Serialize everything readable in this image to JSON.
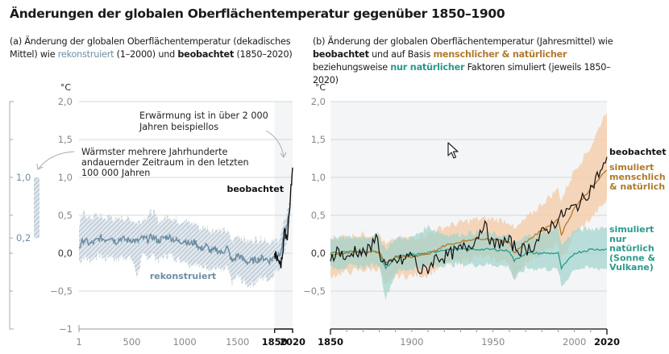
{
  "title": "Änderungen der globalen Oberflächentemperatur gegenüber 1850–1900",
  "panel_a": {
    "subtitle_parts": [
      "(a) Änderung der globalen Oberflächentemperatur (dekadisches Mittel) wie ",
      "rekonstruiert",
      " (1–2000) und ",
      "beobachtet",
      " (1850–2020)"
    ],
    "unit": "°C",
    "annotation_warming": [
      "Erwärmung ist in über 2 000",
      "Jahren beispiellos"
    ],
    "annotation_warmest": [
      "Wärmster mehrere Jahrhunderte",
      "andauernder Zeitraum in den letzten",
      "100 000 Jahren"
    ],
    "label_observed": "beobachtet",
    "label_reconstructed": "rekonstruiert",
    "range_bar": {
      "low": 0.2,
      "high": 1.0,
      "low_label": "0,2",
      "high_label": "1,0"
    }
  },
  "panel_b": {
    "subtitle_parts": [
      "(b) Änderung der globalen Oberflächentemperatur (Jahresmittel) wie ",
      "beobachtet",
      " und auf Basis ",
      "menschlicher & natürlicher",
      " beziehungsweise ",
      "nur natürlicher",
      " Faktoren simuliert (jeweils 1850–2020)"
    ],
    "unit": "°C",
    "label_observed": "beobachtet",
    "label_anthro": [
      "simuliert",
      "menschlich",
      "& natürlich"
    ],
    "label_natural": [
      "simuliert",
      "nur",
      "natürlich",
      "(Sonne &",
      "Vulkane)"
    ]
  },
  "colors": {
    "reconstructed": "#6d8ea3",
    "reconstructed_band": "#b7c7d3",
    "observed": "#111111",
    "anthro": "#b07a2c",
    "anthro_band": "#f3cfae",
    "natural": "#2a9a8c",
    "natural_band": "#9fd3cc",
    "grid": "#d5d8db",
    "panel_bg": "#f4f5f6"
  },
  "chart_data": [
    {
      "type": "line",
      "title": "(a) Änderung der globalen Oberflächentemperatur (dekadisches Mittel)",
      "ylabel": "°C",
      "ylim": [
        -1,
        2
      ],
      "xlim": [
        1,
        2020
      ],
      "yticks": [
        2.0,
        1.5,
        1.0,
        0.5,
        0.0,
        -0.5,
        -1
      ],
      "ytick_labels": [
        "2,0",
        "1,5",
        "1,0",
        "0,5",
        "0,0",
        "−0,5",
        "−1"
      ],
      "xticks": [
        1,
        500,
        1000,
        1500,
        1850,
        2020
      ],
      "xtick_labels": [
        "1",
        "500",
        "1000",
        "1500",
        "1850",
        "2020"
      ],
      "grid": true,
      "series": [
        {
          "name": "rekonstruiert",
          "x": [
            1,
            50,
            100,
            150,
            200,
            250,
            300,
            350,
            400,
            450,
            500,
            550,
            600,
            650,
            700,
            750,
            800,
            850,
            900,
            950,
            1000,
            1050,
            1100,
            1150,
            1200,
            1250,
            1300,
            1350,
            1400,
            1450,
            1500,
            1550,
            1600,
            1650,
            1700,
            1750,
            1800,
            1850,
            1900,
            1950,
            2000
          ],
          "values": [
            0.08,
            0.18,
            0.12,
            0.15,
            0.2,
            0.18,
            0.22,
            0.15,
            0.2,
            0.17,
            0.18,
            0.15,
            0.2,
            0.18,
            0.22,
            0.16,
            0.2,
            0.22,
            0.18,
            0.15,
            0.17,
            0.12,
            0.15,
            0.05,
            0.1,
            0.02,
            0.05,
            0.0,
            0.08,
            -0.12,
            -0.02,
            -0.08,
            -0.12,
            -0.1,
            -0.08,
            -0.06,
            -0.1,
            -0.05,
            0.0,
            0.25,
            0.6
          ],
          "band_low": [
            -0.12,
            -0.05,
            -0.1,
            -0.05,
            -0.03,
            -0.08,
            -0.02,
            -0.1,
            -0.05,
            -0.05,
            -0.08,
            -0.3,
            -0.05,
            -0.05,
            -0.02,
            -0.1,
            -0.05,
            -0.02,
            -0.05,
            -0.1,
            -0.08,
            -0.15,
            -0.12,
            -0.2,
            -0.15,
            -0.22,
            -0.2,
            -0.25,
            -0.2,
            -0.4,
            -0.3,
            -0.38,
            -0.42,
            -0.4,
            -0.35,
            -0.32,
            -0.35,
            -0.25,
            -0.2,
            0.05,
            0.45
          ],
          "band_high": [
            0.35,
            0.55,
            0.45,
            0.5,
            0.48,
            0.45,
            0.5,
            0.42,
            0.48,
            0.45,
            0.45,
            0.4,
            0.45,
            0.5,
            0.55,
            0.42,
            0.45,
            0.5,
            0.45,
            0.42,
            0.45,
            0.38,
            0.4,
            0.32,
            0.35,
            0.3,
            0.32,
            0.28,
            0.3,
            0.15,
            0.25,
            0.2,
            0.15,
            0.18,
            0.18,
            0.2,
            0.15,
            0.15,
            0.2,
            0.45,
            0.75
          ]
        },
        {
          "name": "beobachtet",
          "x": [
            1850,
            1860,
            1870,
            1880,
            1890,
            1900,
            1910,
            1920,
            1930,
            1940,
            1950,
            1960,
            1970,
            1980,
            1990,
            2000,
            2010,
            2020
          ],
          "values": [
            -0.05,
            0.0,
            -0.05,
            -0.1,
            -0.15,
            -0.1,
            -0.15,
            -0.05,
            0.05,
            0.3,
            0.25,
            0.25,
            0.2,
            0.4,
            0.55,
            0.75,
            0.95,
            1.09
          ]
        }
      ],
      "annotations": [
        "Erwärmung ist in über 2 000 Jahren beispiellos",
        "Wärmster mehrere Jahrhunderte andauernder Zeitraum in den letzten 100 000 Jahren"
      ],
      "range_bar": [
        0.2,
        1.0
      ]
    },
    {
      "type": "line",
      "title": "(b) Änderung der globalen Oberflächentemperatur (Jahresmittel)",
      "ylabel": "°C",
      "ylim": [
        -1,
        2
      ],
      "xlim": [
        1850,
        2020
      ],
      "yticks": [
        2.0,
        1.5,
        1.0,
        0.5,
        0.0,
        -0.5
      ],
      "ytick_labels": [
        "2,0",
        "1,5",
        "1,0",
        "0,5",
        "0,0",
        "−0,5"
      ],
      "xticks": [
        1850,
        1900,
        1950,
        2000,
        2020
      ],
      "xtick_labels": [
        "1850",
        "1900",
        "1950",
        "2000",
        "2020"
      ],
      "grid": true,
      "series": [
        {
          "name": "beobachtet",
          "x": [
            1850,
            1855,
            1860,
            1865,
            1870,
            1875,
            1878,
            1880,
            1885,
            1890,
            1895,
            1900,
            1905,
            1910,
            1915,
            1920,
            1925,
            1930,
            1935,
            1940,
            1944,
            1950,
            1955,
            1960,
            1965,
            1970,
            1975,
            1980,
            1985,
            1990,
            1995,
            2000,
            2005,
            2010,
            2015,
            2020
          ],
          "values": [
            -0.05,
            0.05,
            -0.1,
            0.05,
            0.0,
            0.05,
            0.3,
            0.0,
            -0.2,
            -0.1,
            -0.1,
            0.0,
            -0.25,
            -0.2,
            -0.05,
            -0.05,
            0.0,
            0.05,
            0.1,
            0.2,
            0.4,
            0.1,
            0.15,
            0.15,
            0.05,
            0.05,
            0.1,
            0.25,
            0.35,
            0.45,
            0.55,
            0.6,
            0.7,
            0.85,
            1.05,
            1.2
          ]
        },
        {
          "name": "simuliert menschlich & natürlich",
          "x": [
            1850,
            1860,
            1870,
            1880,
            1884,
            1890,
            1900,
            1910,
            1920,
            1930,
            1940,
            1950,
            1960,
            1963,
            1970,
            1980,
            1990,
            1992,
            2000,
            2010,
            2020
          ],
          "values": [
            -0.02,
            0.0,
            0.02,
            0.02,
            -0.12,
            -0.05,
            -0.05,
            -0.02,
            0.1,
            0.15,
            0.2,
            0.18,
            0.15,
            0.0,
            0.15,
            0.3,
            0.45,
            0.25,
            0.6,
            0.85,
            1.1
          ],
          "band_low": [
            -0.3,
            -0.25,
            -0.22,
            -0.2,
            -0.45,
            -0.3,
            -0.3,
            -0.28,
            -0.15,
            -0.1,
            -0.05,
            -0.08,
            -0.12,
            -0.35,
            -0.1,
            0.0,
            0.1,
            -0.1,
            0.25,
            0.45,
            0.7
          ],
          "band_high": [
            0.2,
            0.22,
            0.25,
            0.25,
            0.1,
            0.18,
            0.2,
            0.25,
            0.35,
            0.4,
            0.45,
            0.45,
            0.42,
            0.3,
            0.45,
            0.65,
            0.85,
            0.7,
            1.1,
            1.4,
            1.9
          ]
        },
        {
          "name": "simuliert nur natürlich (Sonne & Vulkane)",
          "x": [
            1850,
            1860,
            1870,
            1880,
            1884,
            1890,
            1900,
            1910,
            1920,
            1930,
            1940,
            1950,
            1960,
            1963,
            1970,
            1980,
            1990,
            1992,
            2000,
            2010,
            2020
          ],
          "values": [
            0.0,
            0.02,
            0.02,
            0.02,
            -0.2,
            -0.05,
            -0.02,
            0.0,
            0.05,
            0.05,
            0.05,
            0.05,
            0.03,
            -0.1,
            0.0,
            0.0,
            0.0,
            -0.2,
            0.0,
            0.05,
            0.05
          ],
          "band_low": [
            -0.2,
            -0.18,
            -0.18,
            -0.15,
            -0.6,
            -0.25,
            -0.2,
            -0.18,
            -0.15,
            -0.15,
            -0.15,
            -0.15,
            -0.18,
            -0.35,
            -0.2,
            -0.2,
            -0.22,
            -0.45,
            -0.2,
            -0.2,
            -0.2
          ],
          "band_high": [
            0.2,
            0.2,
            0.22,
            0.22,
            0.05,
            0.2,
            0.2,
            0.35,
            0.25,
            0.25,
            0.28,
            0.25,
            0.22,
            0.1,
            0.22,
            0.25,
            0.35,
            0.1,
            0.3,
            0.32,
            0.35
          ]
        }
      ]
    }
  ]
}
